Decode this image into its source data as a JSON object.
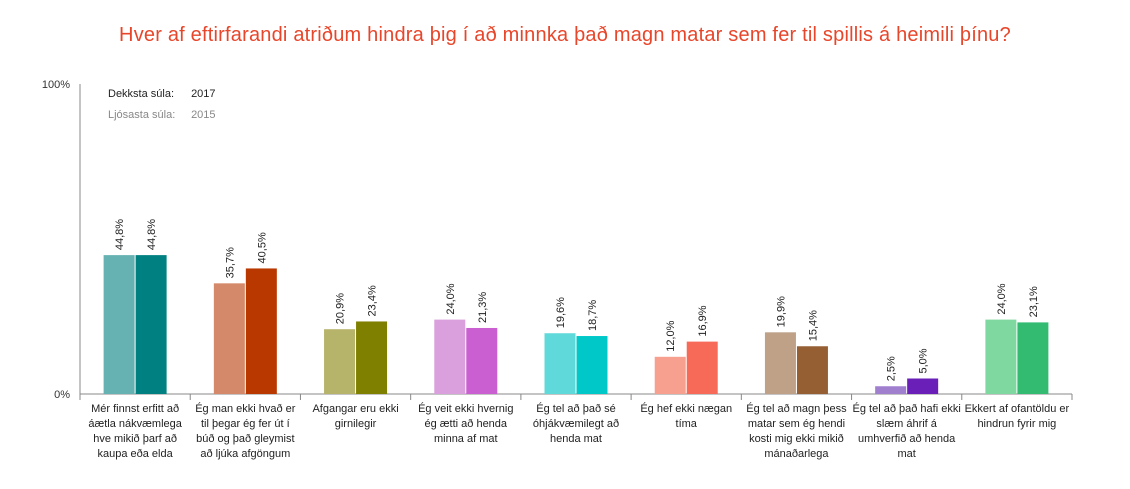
{
  "title": "Hver af eftirfarandi atriðum hindra þig í að minnka það magn matar sem fer til spillis á heimili þínu?",
  "legend": {
    "dark_label": "Dekksta súla:",
    "dark_value": "2017",
    "light_label": "Ljósasta súla:",
    "light_value": "2015"
  },
  "chart_data": {
    "type": "bar",
    "ylim": [
      0,
      100
    ],
    "ytick_labels": [
      "0%",
      "100%"
    ],
    "categories": [
      "Mér finnst erfitt að áætla nákvæmlega hve mikið þarf að kaupa eða elda",
      "Ég man ekki hvað er til þegar ég fer út í búð og það gleymist að ljúka afgöngum",
      "Afgangar eru ekki girnilegir",
      "Ég veit ekki hvernig ég ætti að henda minna af mat",
      "Ég tel að það sé óhjákvæmilegt að henda mat",
      "Ég hef ekki nægan tíma",
      "Ég tel að magn þess matar sem ég hendi kosti mig ekki mikið mánaðarlega",
      "Ég tel að það hafi ekki slæm áhrif á umhverfið að henda mat",
      "Ekkert af ofantöldu er hindrun fyrir mig"
    ],
    "series": [
      {
        "name": "2015",
        "values": [
          44.8,
          35.7,
          20.9,
          24.0,
          19.6,
          12.0,
          19.9,
          2.5,
          24.0
        ],
        "labels": [
          "44,8%",
          "35,7%",
          "20,9%",
          "24,0%",
          "19,6%",
          "12,0%",
          "19,9%",
          "2,5%",
          "24,0%"
        ],
        "colors": [
          "#66b2b2",
          "#d4896a",
          "#b6b36b",
          "#d9a0dd",
          "#5fd9d9",
          "#f7a090",
          "#bea186",
          "#a07fce",
          "#7fd8a0"
        ]
      },
      {
        "name": "2017",
        "values": [
          44.8,
          40.5,
          23.4,
          21.3,
          18.7,
          16.9,
          15.4,
          5.0,
          23.1
        ],
        "labels": [
          "44,8%",
          "40,5%",
          "23,4%",
          "21,3%",
          "18,7%",
          "16,9%",
          "15,4%",
          "5,0%",
          "23,1%"
        ],
        "colors": [
          "#008080",
          "#b83800",
          "#7f7f00",
          "#c95fd0",
          "#00c8c8",
          "#f86a58",
          "#955f33",
          "#6a1fb8",
          "#33bb72"
        ]
      }
    ]
  }
}
